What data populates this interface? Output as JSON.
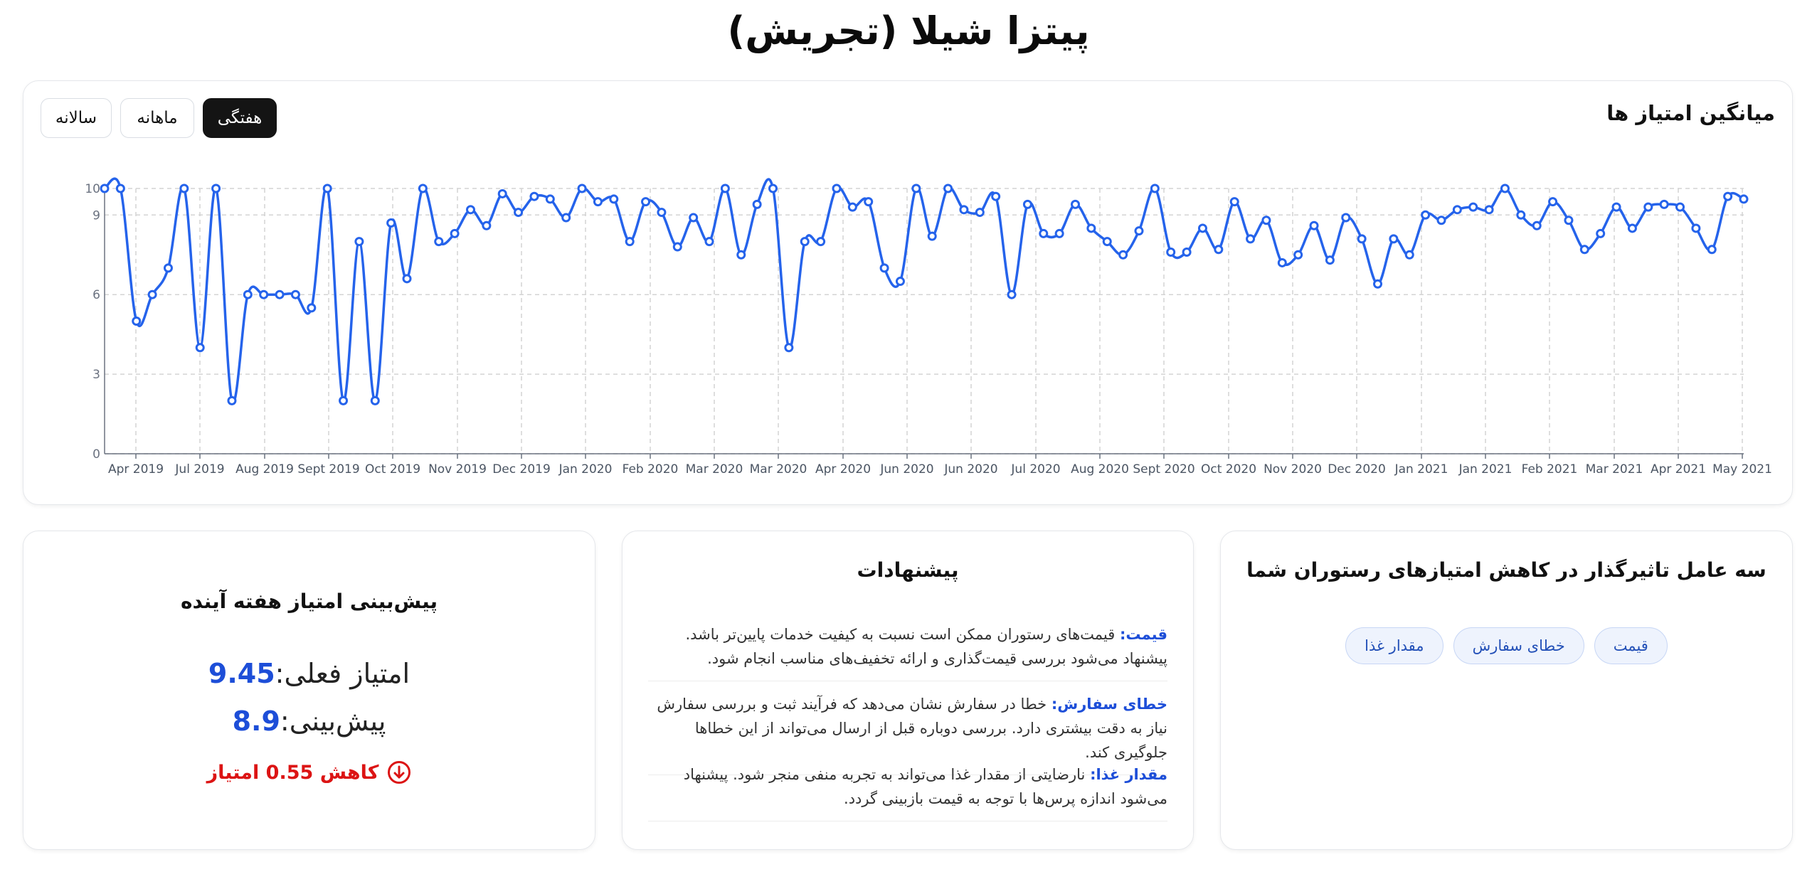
{
  "page": {
    "title": "پیتزا شیلا (تجریش)"
  },
  "chart_card": {
    "title": "میانگین امتیاز ها",
    "tabs": [
      {
        "label": "هفتگی",
        "active": true
      },
      {
        "label": "ماهانه",
        "active": false
      },
      {
        "label": "سالانه",
        "active": false
      }
    ]
  },
  "chart_data": {
    "type": "line",
    "title": "",
    "xlabel": "",
    "ylabel": "",
    "ylim": [
      0,
      10
    ],
    "yticks": [
      0,
      3,
      6,
      9,
      10
    ],
    "grid": true,
    "line_color": "#2563eb",
    "x_tick_labels": [
      "Apr 2019",
      "Jul 2019",
      "Aug 2019",
      "Sept 2019",
      "Oct 2019",
      "Nov 2019",
      "Dec 2019",
      "Jan 2020",
      "Feb 2020",
      "Mar 2020",
      "Mar 2020",
      "Apr 2020",
      "Jun 2020",
      "Jun 2020",
      "Jul 2020",
      "Aug 2020",
      "Sept 2020",
      "Oct 2020",
      "Nov 2020",
      "Dec 2020",
      "Jan 2021",
      "Jan 2021",
      "Feb 2021",
      "Mar 2021",
      "Apr 2021",
      "May 2021"
    ],
    "series": [
      {
        "values": [
          10,
          10,
          5,
          6,
          7,
          10,
          4,
          10,
          2,
          6,
          6,
          6,
          6,
          5.5,
          10,
          2,
          8,
          2,
          8.7,
          6.6,
          10,
          8,
          8.3,
          9.2,
          8.6,
          9.8,
          9.1,
          9.7,
          9.6,
          8.9,
          10,
          9.5,
          9.6,
          8,
          9.5,
          9.1,
          7.8,
          8.9,
          8,
          10,
          7.5,
          9.4,
          10,
          4,
          8,
          8,
          10,
          9.3,
          9.5,
          7,
          6.5,
          10,
          8.2,
          10,
          9.2,
          9.1,
          9.7,
          6,
          9.4,
          8.3,
          8.3,
          9.4,
          8.5,
          8,
          7.5,
          8.4,
          10,
          7.6,
          7.6,
          8.5,
          7.7,
          9.5,
          8.1,
          8.8,
          7.2,
          7.5,
          8.6,
          7.3,
          8.9,
          8.1,
          6.4,
          8.1,
          7.5,
          9,
          8.8,
          9.2,
          9.3,
          9.2,
          10,
          9,
          8.6,
          9.5,
          8.8,
          7.7,
          8.3,
          9.3,
          8.5,
          9.3,
          9.4,
          9.3,
          8.5,
          7.7,
          9.7,
          9.6
        ]
      }
    ]
  },
  "forecast": {
    "heading": "پیش‌بینی امتیاز هفته آینده",
    "current_label": "امتیاز فعلی:",
    "current_value": "9.45",
    "predicted_label": "پیش‌بینی:",
    "predicted_value": "8.9",
    "change_text": "کاهش 0.55 امتیاز",
    "change_color": "#dc1414",
    "change_icon": "arrow-down-circle-icon"
  },
  "suggestions": {
    "heading": "پیشنهادات",
    "items": [
      {
        "label": "قیمت:",
        "text": " قیمت‌های رستوران ممکن است نسبت به کیفیت خدمات پایین‌تر باشد. پیشنهاد می‌شود بررسی قیمت‌گذاری و ارائه تخفیف‌های مناسب انجام شود."
      },
      {
        "label": "خطای سفارش:",
        "text": " خطا در سفارش نشان می‌دهد که فرآیند ثبت و بررسی سفارش نیاز به دقت بیشتری دارد. بررسی دوباره قبل از ارسال می‌تواند از این خطاها جلوگیری کند."
      },
      {
        "label": "مقدار غذا:",
        "text": " نارضایتی از مقدار غذا می‌تواند به تجربه منفی منجر شود. پیشنهاد می‌شود اندازه پرس‌ها با توجه به قیمت بازبینی گردد."
      }
    ]
  },
  "factors": {
    "heading": "سه عامل تاثیرگذار در کاهش امتیازهای رستوران شما",
    "tags": [
      "قیمت",
      "خطای سفارش",
      "مقدار غذا"
    ]
  },
  "colors": {
    "accent": "#2563eb",
    "negative": "#dc1414",
    "tab_active_bg": "#141414"
  }
}
